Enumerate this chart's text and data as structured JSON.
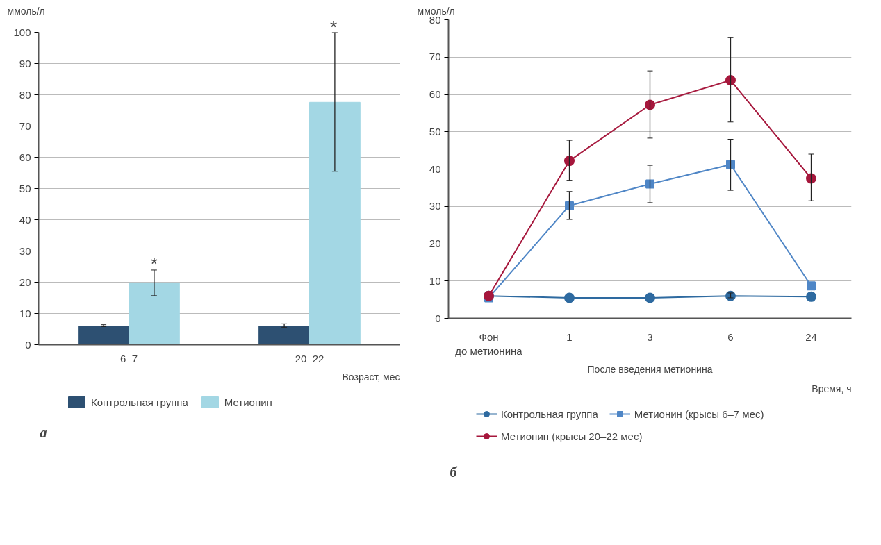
{
  "chart_data": [
    {
      "type": "bar",
      "ylabel": "ммоль/л",
      "xlabel": "Возраст, мес",
      "categories": [
        "6–7",
        "20–22"
      ],
      "series": [
        {
          "name": "Контрольная группа",
          "color": "#2d5072",
          "values": [
            6,
            6
          ],
          "errors": [
            [
              5.8,
              6.4
            ],
            [
              5.6,
              6.7
            ]
          ]
        },
        {
          "name": "Метионин",
          "color": "#a3d7e4",
          "values": [
            19.8,
            77.6
          ],
          "errors": [
            [
              15.7,
              23.9
            ],
            [
              55.5,
              100
            ]
          ]
        }
      ],
      "ylim": [
        0,
        100
      ],
      "yticks": [
        0,
        10,
        20,
        30,
        40,
        50,
        60,
        70,
        80,
        90,
        100
      ],
      "grid": "y",
      "legend": "bottom",
      "annotations": [
        "*",
        "*",
        "а"
      ]
    },
    {
      "type": "line",
      "ylabel": "ммоль/л",
      "xlabel": "Время, ч",
      "categories": [
        "Фон\nдо метионина",
        "1",
        "3",
        "6",
        "24"
      ],
      "series": [
        {
          "name": "Контрольная группа",
          "color": "#2e6aa0",
          "marker": "circle",
          "values": [
            6,
            5.5,
            5.5,
            6,
            5.8
          ],
          "errors": [
            null,
            null,
            null,
            [
              5.5,
              6.8
            ],
            null
          ]
        },
        {
          "name": "Метионин (крысы 6–7 мес)",
          "color": "#4f86c6",
          "marker": "square",
          "values": [
            5.5,
            30.2,
            36,
            41.2,
            8.7
          ],
          "errors": [
            null,
            [
              26.5,
              34
            ],
            [
              31,
              41
            ],
            [
              34.3,
              48
            ],
            null
          ]
        },
        {
          "name": "Метионин (крысы 20–22 мес)",
          "color": "#a6173c",
          "marker": "circle",
          "values": [
            6,
            42.2,
            57.2,
            63.8,
            37.5
          ],
          "errors": [
            null,
            [
              37,
              47.7
            ],
            [
              48.3,
              66.3
            ],
            [
              52.6,
              75.2
            ],
            [
              31.5,
              44
            ]
          ]
        }
      ],
      "ylim": [
        0,
        80
      ],
      "yticks": [
        0,
        10,
        20,
        30,
        40,
        50,
        60,
        70,
        80
      ],
      "grid": "y",
      "legend": "bottom",
      "annotations": [
        "После введения метионина",
        "б"
      ]
    }
  ]
}
